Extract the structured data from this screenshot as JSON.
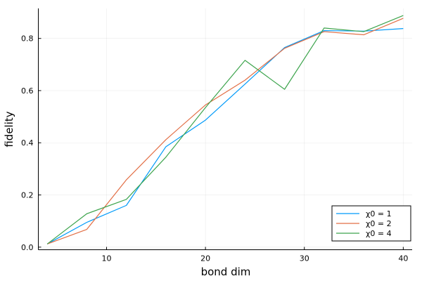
{
  "chart_data": {
    "type": "line",
    "title": "",
    "xlabel": "bond dim",
    "ylabel": "fidelity",
    "xlim": [
      3.1,
      40.9
    ],
    "ylim": [
      -0.01,
      0.915
    ],
    "xticks": [
      10,
      20,
      30,
      40
    ],
    "xtick_labels": [
      "10",
      "20",
      "30",
      "40"
    ],
    "yticks": [
      0.0,
      0.2,
      0.4,
      0.6,
      0.8
    ],
    "ytick_labels": [
      "0.0",
      "0.2",
      "0.4",
      "0.6",
      "0.8"
    ],
    "grid": true,
    "legend_position": "bottom-right",
    "x": [
      4,
      8,
      12,
      16,
      20,
      24,
      28,
      32,
      36,
      40
    ],
    "series": [
      {
        "name": "χ0 = 1",
        "color": "#009AF9",
        "values": [
          0.012,
          0.095,
          0.16,
          0.385,
          0.487,
          0.625,
          0.765,
          0.83,
          0.828,
          0.838
        ]
      },
      {
        "name": "χ0 = 2",
        "color": "#E26F46",
        "values": [
          0.012,
          0.068,
          0.258,
          0.412,
          0.545,
          0.64,
          0.762,
          0.826,
          0.814,
          0.877
        ]
      },
      {
        "name": "χ0 = 4",
        "color": "#3DA44D",
        "values": [
          0.012,
          0.128,
          0.183,
          0.345,
          0.535,
          0.716,
          0.605,
          0.84,
          0.826,
          0.888
        ]
      }
    ]
  }
}
